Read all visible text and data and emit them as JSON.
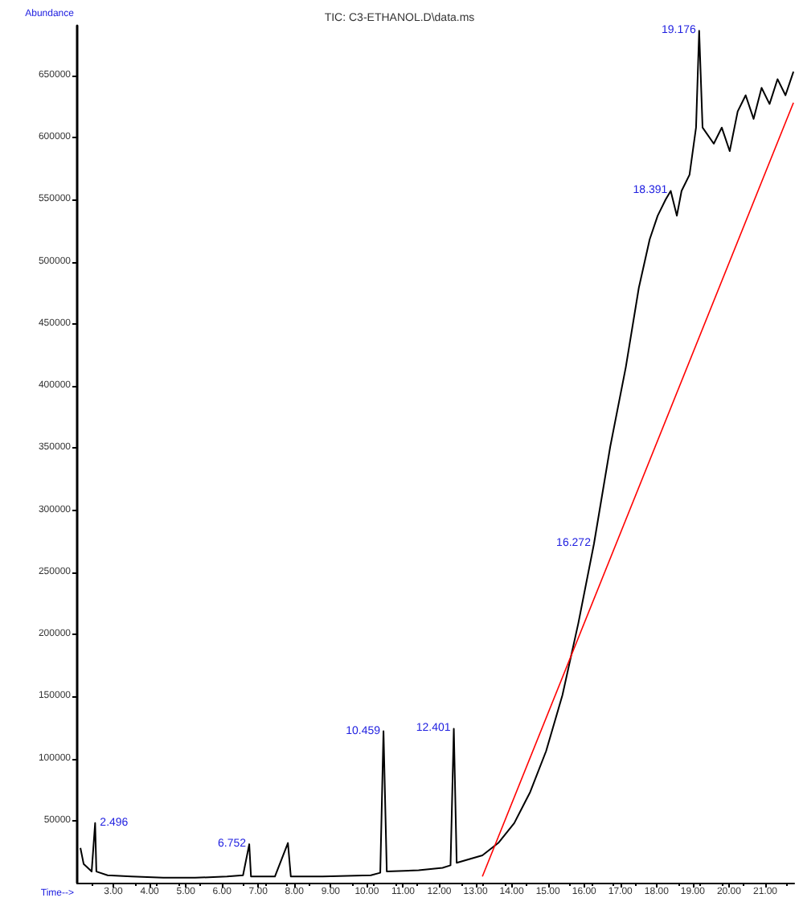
{
  "chart_data": {
    "type": "line",
    "title": "TIC: C3-ETHANOL.D\\data.ms",
    "xlabel": "Time-->",
    "ylabel": "Abundance",
    "marker": "none",
    "grid": false,
    "xlim": [
      2.0,
      21.8
    ],
    "xticks": [
      {
        "value": 3,
        "label": "3.00"
      },
      {
        "value": 4,
        "label": "4.00"
      },
      {
        "value": 5,
        "label": "5.00"
      },
      {
        "value": 6,
        "label": "6.00"
      },
      {
        "value": 7,
        "label": "7.00"
      },
      {
        "value": 8,
        "label": "8.00"
      },
      {
        "value": 9,
        "label": "9.00"
      },
      {
        "value": 10,
        "label": "10.00"
      },
      {
        "value": 11,
        "label": "11.00"
      },
      {
        "value": 12,
        "label": "12.00"
      },
      {
        "value": 13,
        "label": "13.00"
      },
      {
        "value": 14,
        "label": "14.00"
      },
      {
        "value": 15,
        "label": "15.00"
      },
      {
        "value": 16,
        "label": "16.00"
      },
      {
        "value": 17,
        "label": "17.00"
      },
      {
        "value": 18,
        "label": "18.00"
      },
      {
        "value": 19,
        "label": "19.00"
      },
      {
        "value": 20,
        "label": "20.00"
      },
      {
        "value": 21,
        "label": "21.00"
      }
    ],
    "ylim": [
      0,
      690000
    ],
    "yticks": [
      50000,
      100000,
      150000,
      200000,
      250000,
      300000,
      350000,
      400000,
      450000,
      500000,
      550000,
      600000,
      650000
    ],
    "series": [
      {
        "color": "#000000",
        "x": [
          2.09,
          2.18,
          2.4,
          2.496,
          2.53,
          2.84,
          3.5,
          4.38,
          5.26,
          6.14,
          6.58,
          6.752,
          6.8,
          7.46,
          7.82,
          7.9,
          8.78,
          10.11,
          10.37,
          10.459,
          10.55,
          11.43,
          12.09,
          12.31,
          12.401,
          12.48,
          13.19,
          13.63,
          14.07,
          14.51,
          14.95,
          15.4,
          15.84,
          16.272,
          16.72,
          17.15,
          17.51,
          17.81,
          18.03,
          18.25,
          18.391,
          18.56,
          18.69,
          18.91,
          19.09,
          19.176,
          19.27,
          19.58,
          19.8,
          20.02,
          20.24,
          20.46,
          20.68,
          20.9,
          21.12,
          21.34,
          21.56,
          21.78
        ],
        "values": [
          28000,
          15000,
          9000,
          48000,
          9000,
          6000,
          5000,
          4000,
          4000,
          5000,
          6000,
          31000,
          5000,
          5000,
          32000,
          5000,
          5000,
          6000,
          8000,
          122000,
          9000,
          10000,
          12000,
          14000,
          124000,
          16000,
          22000,
          32000,
          48000,
          73000,
          106000,
          151000,
          209000,
          273000,
          351000,
          415000,
          479000,
          518000,
          537000,
          550000,
          557000,
          537000,
          557000,
          570000,
          608000,
          686000,
          608000,
          595000,
          608000,
          589000,
          621000,
          634000,
          615000,
          640000,
          627000,
          647000,
          634000,
          653000
        ]
      },
      {
        "color": "#ff0000",
        "x": [
          13.19,
          21.78
        ],
        "values": [
          5000,
          628000
        ]
      }
    ],
    "annotations": [
      {
        "text": "2.496",
        "x": 2.496,
        "y": 48000
      },
      {
        "text": "6.752",
        "x": 6.752,
        "y": 31000
      },
      {
        "text": "10.459",
        "x": 10.459,
        "y": 122000
      },
      {
        "text": "12.401",
        "x": 12.401,
        "y": 124000
      },
      {
        "text": "16.272",
        "x": 16.272,
        "y": 273000
      },
      {
        "text": "18.391",
        "x": 18.391,
        "y": 557000
      },
      {
        "text": "19.176",
        "x": 19.176,
        "y": 686000
      }
    ]
  }
}
